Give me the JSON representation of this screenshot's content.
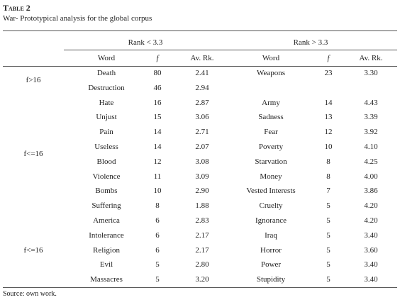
{
  "header": {
    "title": "Table 2",
    "subtitle": "War- Prototypical analysis for the global corpus"
  },
  "table": {
    "group_headers": [
      "Rank < 3.3",
      "Rank > 3.3"
    ],
    "columns": [
      "Word",
      "f",
      "Av. Rk.",
      "Word",
      "f",
      "Av. Rk."
    ],
    "groups": [
      {
        "label": "f>16",
        "rows": [
          [
            "Death",
            "80",
            "2.41",
            "Weapons",
            "23",
            "3.30"
          ],
          [
            "Destruction",
            "46",
            "2.94",
            null,
            null,
            null
          ]
        ]
      },
      {
        "label": "f<=16",
        "rows": [
          [
            "Hate",
            "16",
            "2.87",
            "Army",
            "14",
            "4.43"
          ],
          [
            "Unjust",
            "15",
            "3.06",
            "Sadness",
            "13",
            "3.39"
          ],
          [
            "Pain",
            "14",
            "2.71",
            "Fear",
            "12",
            "3.92"
          ],
          [
            "Useless",
            "14",
            "2.07",
            "Poverty",
            "10",
            "4.10"
          ],
          [
            "Blood",
            "12",
            "3.08",
            "Starvation",
            "8",
            "4.25"
          ],
          [
            "Violence",
            "11",
            "3.09",
            "Money",
            "8",
            "4.00"
          ],
          [
            "Bombs",
            "10",
            "2.90",
            "Vested Interests",
            "7",
            "3.86"
          ],
          [
            "Suffering",
            "8",
            "1.88",
            "Cruelty",
            "5",
            "4.20"
          ]
        ]
      },
      {
        "label": "f<=16",
        "rows": [
          [
            "America",
            "6",
            "2.83",
            "Ignorance",
            "5",
            "4.20"
          ],
          [
            "Intolerance",
            "6",
            "2.17",
            "Iraq",
            "5",
            "3.40"
          ],
          [
            "Religion",
            "6",
            "2.17",
            "Horror",
            "5",
            "3.60"
          ],
          [
            "Evil",
            "5",
            "2.80",
            "Power",
            "5",
            "3.40"
          ],
          [
            "Massacres",
            "5",
            "3.20",
            "Stupidity",
            "5",
            "3.40"
          ]
        ]
      }
    ]
  },
  "footer": {
    "source": "Source: own work."
  }
}
